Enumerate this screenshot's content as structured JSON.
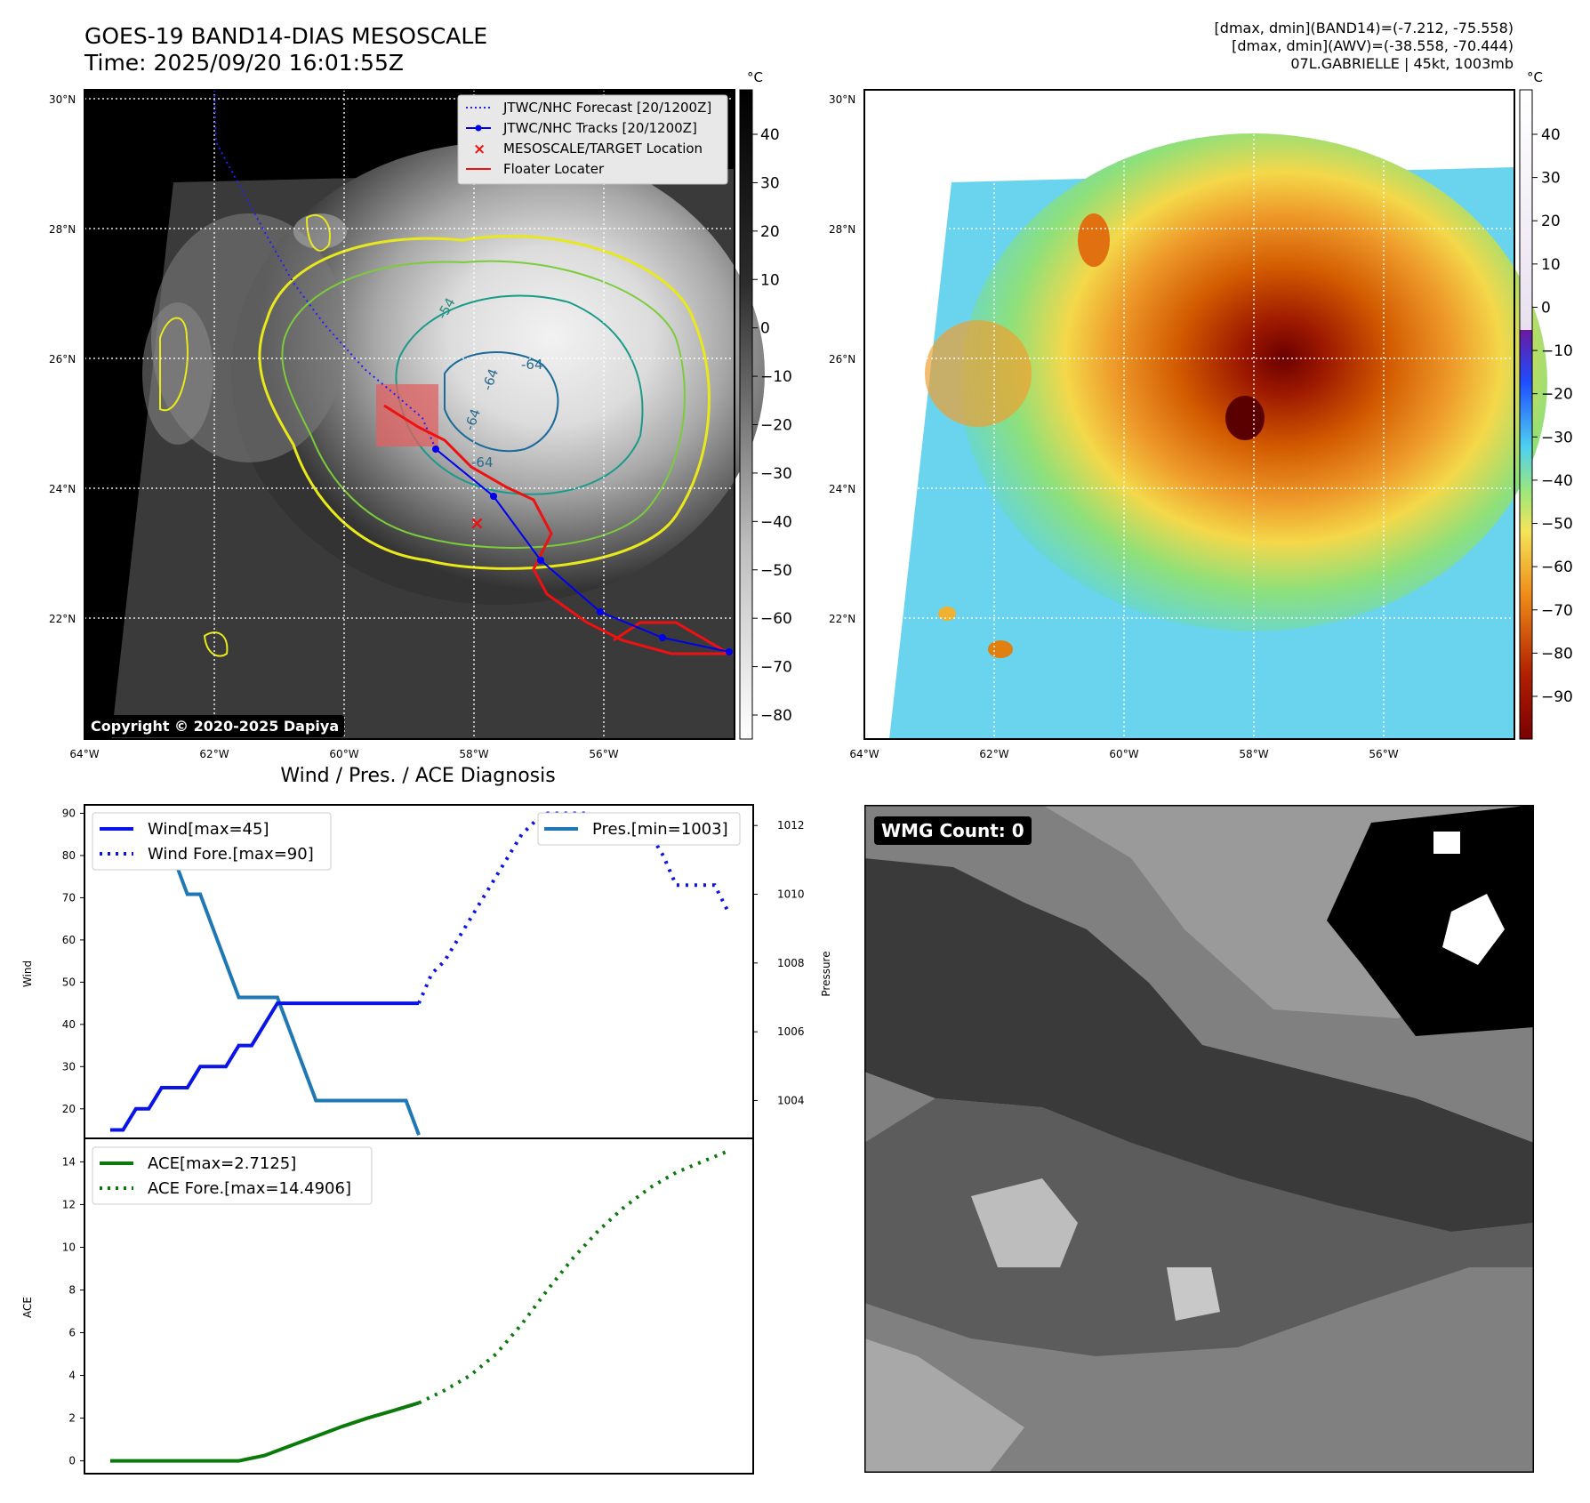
{
  "header": {
    "title_line1": "GOES-19 BAND14-DIAS MESOSCALE",
    "title_line2": "Time: 2025/09/20 16:01:55Z",
    "info_line1": "[dmax, dmin](BAND14)=(-7.212, -75.558)",
    "info_line2": "[dmax, dmin](AWV)=(-38.558, -70.444)",
    "info_line3": "07L.GABRIELLE | 45kt, 1003mb"
  },
  "map": {
    "lat_labels": [
      "30°N",
      "28°N",
      "26°N",
      "24°N",
      "22°N"
    ],
    "lon_labels": [
      "64°W",
      "62°W",
      "60°W",
      "58°W",
      "56°W"
    ],
    "lat_values": [
      30,
      28,
      26,
      24,
      22
    ],
    "lon_values": [
      -64,
      -62,
      -60,
      -58,
      -56
    ],
    "legend": {
      "forecast": "JTWC/NHC Forecast [20/1200Z]",
      "tracks": "JTWC/NHC Tracks [20/1200Z]",
      "target": "MESOSCALE/TARGET Location",
      "floater": "Floater Locater"
    },
    "contour_labels": [
      "-54",
      "-64",
      "-64",
      "-64",
      "-64"
    ],
    "copyright": "Copyright © 2020-2025 Dapiya"
  },
  "colorbar_left": {
    "unit": "°C",
    "ticks": [
      "40",
      "30",
      "20",
      "10",
      "0",
      "−10",
      "−20",
      "−30",
      "−40",
      "−50",
      "−60",
      "−70",
      "−80"
    ]
  },
  "colorbar_right": {
    "unit": "°C",
    "ticks": [
      "40",
      "30",
      "20",
      "10",
      "0",
      "−10",
      "−20",
      "−30",
      "−40",
      "−50",
      "−60",
      "−70",
      "−80",
      "−90"
    ]
  },
  "colors": {
    "forecast_track": "#1f1fff",
    "observed_track": "#0000ee",
    "floater": "#ee1111",
    "wind": "#0a14e6",
    "pressure": "#1f77b4",
    "ace": "#0a7a0a"
  },
  "diagnosis": {
    "title": "Wind / Pres. / ACE Diagnosis",
    "wind_ylabel": "Wind",
    "pres_ylabel": "Pressure",
    "ace_ylabel": "ACE",
    "legend_wind": "Wind[max=45]",
    "legend_wind_fore": "Wind Fore.[max=90]",
    "legend_pres": "Pres.[min=1003]",
    "legend_ace": "ACE[max=2.7125]",
    "legend_ace_fore": "ACE Fore.[max=14.4906]"
  },
  "wmg": {
    "label": "WMG Count: 0"
  },
  "chart_data": [
    {
      "type": "line",
      "title": "Wind / Pres. / ACE Diagnosis",
      "ylabel": "Wind",
      "ylim": [
        13,
        92
      ],
      "yticks": [
        20,
        30,
        40,
        50,
        60,
        70,
        80,
        90
      ],
      "series": [
        {
          "name": "Wind[max=45]",
          "x": [
            0,
            1,
            2,
            3,
            4,
            5,
            6,
            7,
            8,
            9,
            10,
            11,
            12,
            13,
            14,
            15,
            16,
            17,
            18,
            19,
            20,
            21,
            22,
            23,
            24
          ],
          "values": [
            15,
            15,
            20,
            20,
            25,
            25,
            25,
            30,
            30,
            30,
            35,
            35,
            40,
            45,
            45,
            45,
            45,
            45,
            45,
            45,
            45,
            45,
            45,
            45,
            45
          ]
        },
        {
          "name": "Wind Fore.[max=90]",
          "x": [
            24,
            25,
            26,
            27,
            28,
            29,
            30,
            31,
            32,
            33,
            34,
            35,
            36,
            37,
            38,
            39,
            40,
            41,
            42,
            43,
            44,
            45,
            46,
            47,
            48
          ],
          "values": [
            45,
            52,
            55,
            60,
            65,
            70,
            75,
            80,
            85,
            88,
            90,
            90,
            90,
            90,
            88,
            85,
            85,
            85,
            85,
            80,
            73,
            73,
            73,
            73,
            67
          ]
        },
        {
          "name": "Pres.[min=1003]",
          "axis": "right",
          "ylim": [
            1002.9,
            1012.6
          ],
          "yticks": [
            1004,
            1006,
            1008,
            1010,
            1012
          ],
          "x": [
            2,
            3,
            4,
            5,
            6,
            7,
            8,
            9,
            10,
            11,
            12,
            13,
            14,
            15,
            16,
            17,
            18,
            19,
            20,
            21,
            22,
            23,
            24
          ],
          "values": [
            1012,
            1012,
            1011,
            1011,
            1010,
            1010,
            1009,
            1008,
            1007,
            1007,
            1007,
            1007,
            1006,
            1005,
            1004,
            1004,
            1004,
            1004,
            1004,
            1004,
            1004,
            1004,
            1003
          ]
        }
      ]
    },
    {
      "type": "line",
      "ylabel": "ACE",
      "ylim": [
        -0.6,
        15.1
      ],
      "yticks": [
        0,
        2,
        4,
        6,
        8,
        10,
        12,
        14
      ],
      "series": [
        {
          "name": "ACE[max=2.7125]",
          "x": [
            0,
            2,
            4,
            6,
            8,
            10,
            12,
            14,
            16,
            18,
            20,
            22,
            24
          ],
          "values": [
            0,
            0,
            0,
            0,
            0,
            0,
            0.25,
            0.7,
            1.15,
            1.6,
            2.0,
            2.35,
            2.7125
          ]
        },
        {
          "name": "ACE Fore.[max=14.4906]",
          "x": [
            24,
            26,
            28,
            30,
            32,
            34,
            36,
            38,
            40,
            42,
            44,
            46,
            48
          ],
          "values": [
            2.7125,
            3.3,
            4.0,
            5.0,
            6.4,
            8.0,
            9.5,
            10.8,
            11.9,
            12.8,
            13.5,
            14.0,
            14.4906
          ]
        }
      ]
    }
  ]
}
